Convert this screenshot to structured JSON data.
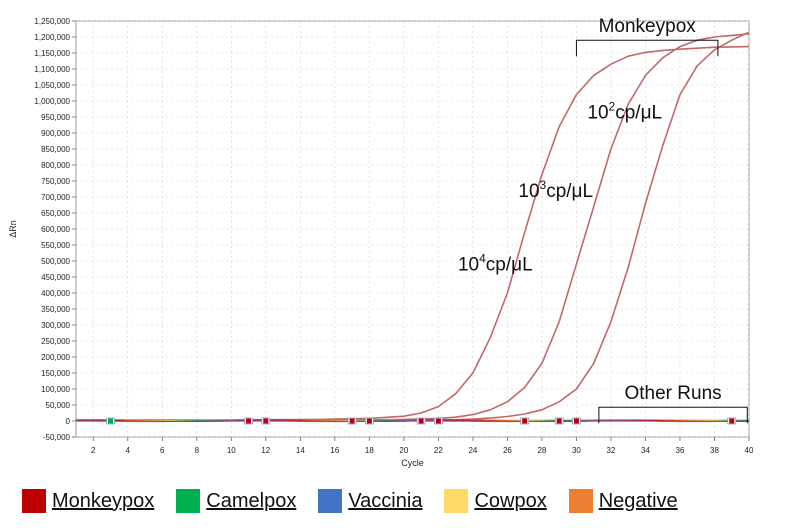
{
  "chart_data": {
    "type": "line",
    "title": "",
    "xlabel": "Cycle",
    "ylabel": "ΔRn",
    "xlim": [
      1,
      40
    ],
    "ylim": [
      -50000,
      1250000
    ],
    "x_ticks": [
      2,
      4,
      6,
      8,
      10,
      12,
      14,
      16,
      18,
      20,
      22,
      24,
      26,
      28,
      30,
      32,
      34,
      36,
      38,
      40
    ],
    "y_ticks": [
      -50000,
      0,
      50000,
      100000,
      150000,
      200000,
      250000,
      300000,
      350000,
      400000,
      450000,
      500000,
      550000,
      600000,
      650000,
      700000,
      750000,
      800000,
      850000,
      900000,
      950000,
      1000000,
      1050000,
      1100000,
      1150000,
      1200000,
      1250000
    ],
    "y_tick_labels": [
      "-50,000",
      "0",
      "50,000",
      "100,000",
      "150,000",
      "200,000",
      "250,000",
      "300,000",
      "350,000",
      "400,000",
      "450,000",
      "500,000",
      "550,000",
      "600,000",
      "650,000",
      "700,000",
      "750,000",
      "800,000",
      "850,000",
      "900,000",
      "950,000",
      "1,000,000",
      "1,050,000",
      "1,100,000",
      "1,150,000",
      "1,200,000",
      "1,250,000"
    ],
    "grid": true,
    "series": [
      {
        "color": "#c0696a",
        "x": [
          1,
          10,
          15,
          18,
          20,
          21,
          22,
          23,
          24,
          25,
          26,
          27,
          28,
          29,
          30,
          31,
          32,
          33,
          34,
          35,
          36,
          37,
          38,
          39,
          40
        ],
        "y": [
          3000,
          3000,
          5000,
          8000,
          15000,
          25000,
          45000,
          85000,
          150000,
          260000,
          400000,
          590000,
          770000,
          920000,
          1020000,
          1080000,
          1115000,
          1140000,
          1152000,
          1158000,
          1162000,
          1165000,
          1168000,
          1169000,
          1170000
        ]
      },
      {
        "color": "#c0696a",
        "x": [
          1,
          10,
          18,
          20,
          22,
          23,
          24,
          25,
          26,
          27,
          28,
          29,
          30,
          31,
          32,
          33,
          34,
          35,
          36,
          37,
          38,
          39,
          40
        ],
        "y": [
          2000,
          2000,
          3000,
          5000,
          8000,
          12000,
          20000,
          35000,
          60000,
          105000,
          180000,
          310000,
          490000,
          670000,
          850000,
          990000,
          1080000,
          1135000,
          1170000,
          1190000,
          1200000,
          1205000,
          1210000
        ]
      },
      {
        "color": "#c0696a",
        "x": [
          1,
          10,
          20,
          23,
          24,
          25,
          26,
          27,
          28,
          29,
          30,
          31,
          32,
          33,
          34,
          35,
          36,
          37,
          38,
          39,
          40
        ],
        "y": [
          2000,
          2000,
          3000,
          4000,
          6000,
          9000,
          14000,
          22000,
          35000,
          60000,
          100000,
          180000,
          310000,
          480000,
          680000,
          860000,
          1020000,
          1110000,
          1160000,
          1190000,
          1215000
        ]
      }
    ],
    "baseline_markers": [
      {
        "x": 3,
        "color": "#00b050"
      },
      {
        "x": 11,
        "color": "#c00000"
      },
      {
        "x": 12,
        "color": "#c00000"
      },
      {
        "x": 17,
        "color": "#c00000"
      },
      {
        "x": 18,
        "color": "#c00000"
      },
      {
        "x": 21,
        "color": "#c00000"
      },
      {
        "x": 22,
        "color": "#c00000"
      },
      {
        "x": 27,
        "color": "#c00000"
      },
      {
        "x": 29,
        "color": "#c00000"
      },
      {
        "x": 30,
        "color": "#c00000"
      },
      {
        "x": 39,
        "color": "#c00000"
      }
    ],
    "annotations": {
      "monkeypox": "Monkeypox",
      "other_runs": "Other Runs",
      "curve_labels": [
        {
          "base": "10",
          "sup": "4",
          "rest": "cp/μL",
          "x": 25.3,
          "y": 470000
        },
        {
          "base": "10",
          "sup": "3",
          "rest": "cp/μL",
          "x": 28.8,
          "y": 700000
        },
        {
          "base": "10",
          "sup": "2",
          "rest": "cp/μL",
          "x": 32.8,
          "y": 945000
        }
      ],
      "monkeypox_bracket": {
        "x1": 30,
        "x2": 38.2,
        "y_text": 1215000
      },
      "other_runs_bracket": {
        "x1": 31.3,
        "x2": 39.9,
        "y_text": 68000
      }
    }
  },
  "legend": [
    {
      "label": "Monkeypox",
      "color": "#c00000"
    },
    {
      "label": "Camelpox",
      "color": "#00b050"
    },
    {
      "label": "Vaccinia",
      "color": "#4472c4"
    },
    {
      "label": "Cowpox",
      "color": "#ffd966"
    },
    {
      "label": "Negative",
      "color": "#ed7d31"
    }
  ]
}
